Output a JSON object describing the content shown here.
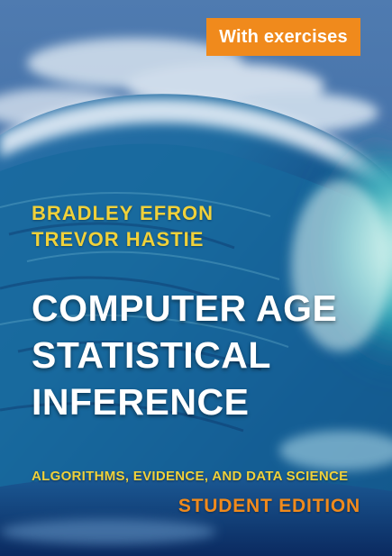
{
  "cover": {
    "badge_text": "With exercises",
    "authors": [
      "BRADLEY EFRON",
      "TREVOR HASTIE"
    ],
    "title_lines": [
      "COMPUTER AGE",
      "STATISTICAL",
      "INFERENCE"
    ],
    "subtitle": "ALGORITHMS, EVIDENCE, AND DATA SCIENCE",
    "edition": "STUDENT EDITION"
  },
  "colors": {
    "badge_background": "#f08a1c",
    "author_text": "#f0d13a",
    "title_text": "#ffffff",
    "subtitle_text": "#f0d13a",
    "edition_text": "#f08a1c",
    "wave_deep": "#0c2a63",
    "wave_teal": "#1c9db0",
    "sky": "#4a78ad"
  }
}
